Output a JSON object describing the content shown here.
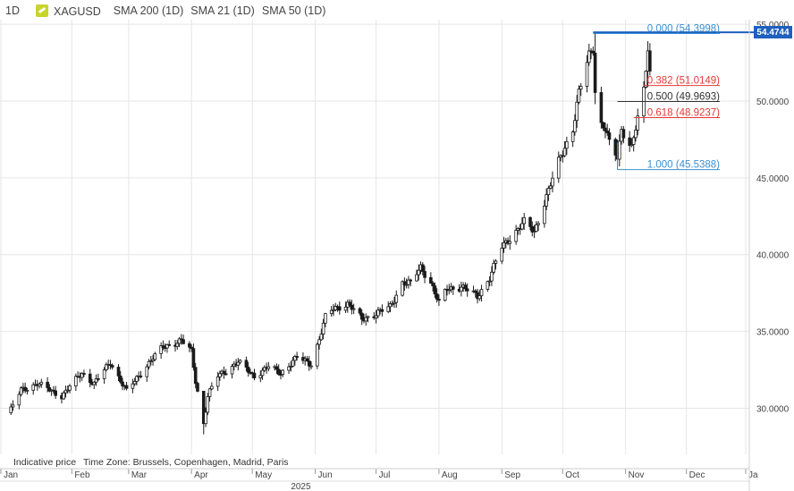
{
  "toolbar": {
    "timeframe": "1D",
    "symbol": "XAGUSD",
    "indicators": [
      "SMA 200 (1D)",
      "SMA 21 (1D)",
      "SMA 50 (1D)"
    ]
  },
  "footer": {
    "indicative": "Indicative price",
    "timezone": "Time Zone: Brussels, Copenhagen, Madrid, Paris",
    "year": "2025"
  },
  "colors": {
    "candle": "#1a1a1a",
    "price_line": "#1f5fbf",
    "fib_zero": "#3a8fd1",
    "fib_382": "#e53935",
    "fib_500": "#333333",
    "fib_618": "#e53935",
    "fib_100": "#3a8fd1",
    "grid": "#e6e6e6"
  },
  "chart_data": {
    "type": "candlestick",
    "symbol": "XAGUSD",
    "timeframe": "1D",
    "y_range": [
      27.0,
      55.3
    ],
    "y_ticks": [
      "55.0000",
      "50.0000",
      "45.0000",
      "40.0000",
      "35.0000",
      "30.0000"
    ],
    "y_tick_values": [
      55,
      50,
      45,
      40,
      35,
      30
    ],
    "x_labels": [
      "Jan",
      "Feb",
      "Mar",
      "Apr",
      "May",
      "Jun",
      "Jul",
      "Aug",
      "Sep",
      "Oct",
      "Nov",
      "Dec",
      "Ja"
    ],
    "current_price": "54.4744",
    "current_price_value": 54.4744,
    "fibonacci": [
      {
        "label": "0.000 (54.3998)",
        "level": 0.0,
        "price": 54.3998,
        "color": "#3a8fd1"
      },
      {
        "label": "0.382 (51.0149)",
        "level": 0.382,
        "price": 51.0149,
        "color": "#e53935"
      },
      {
        "label": "0.500 (49.9693)",
        "level": 0.5,
        "price": 49.9693,
        "color": "#333333"
      },
      {
        "label": "0.618 (48.9237)",
        "level": 0.618,
        "price": 48.9237,
        "color": "#e53935"
      },
      {
        "label": "1.000 (45.5388)",
        "level": 1.0,
        "price": 45.5388,
        "color": "#3a8fd1"
      }
    ],
    "close_anchors": [
      [
        "2025-01-02",
        29.9
      ],
      [
        "2025-01-07",
        31.2
      ],
      [
        "2025-01-15",
        31.6
      ],
      [
        "2025-01-27",
        30.8
      ],
      [
        "2025-02-06",
        32.3
      ],
      [
        "2025-02-12",
        31.6
      ],
      [
        "2025-02-20",
        33.0
      ],
      [
        "2025-02-28",
        31.1
      ],
      [
        "2025-03-10",
        32.8
      ],
      [
        "2025-03-18",
        34.0
      ],
      [
        "2025-03-27",
        34.4
      ],
      [
        "2025-04-01",
        33.7
      ],
      [
        "2025-04-03",
        31.8
      ],
      [
        "2025-04-07",
        29.0
      ],
      [
        "2025-04-09",
        30.8
      ],
      [
        "2025-04-14",
        32.1
      ],
      [
        "2025-04-24",
        33.0
      ],
      [
        "2025-05-02",
        32.1
      ],
      [
        "2025-05-09",
        32.7
      ],
      [
        "2025-05-15",
        32.3
      ],
      [
        "2025-05-23",
        33.3
      ],
      [
        "2025-05-30",
        32.9
      ],
      [
        "2025-06-03",
        34.5
      ],
      [
        "2025-06-06",
        35.9
      ],
      [
        "2025-06-10",
        36.5
      ],
      [
        "2025-06-17",
        36.8
      ],
      [
        "2025-06-24",
        35.8
      ],
      [
        "2025-06-30",
        36.1
      ],
      [
        "2025-07-08",
        36.6
      ],
      [
        "2025-07-14",
        38.2
      ],
      [
        "2025-07-18",
        38.1
      ],
      [
        "2025-07-23",
        39.2
      ],
      [
        "2025-07-28",
        38.2
      ],
      [
        "2025-08-01",
        36.8
      ],
      [
        "2025-08-05",
        37.8
      ],
      [
        "2025-08-12",
        37.9
      ],
      [
        "2025-08-20",
        37.3
      ],
      [
        "2025-08-26",
        38.5
      ],
      [
        "2025-09-01",
        40.5
      ],
      [
        "2025-09-05",
        41.1
      ],
      [
        "2025-09-12",
        42.1
      ],
      [
        "2025-09-17",
        41.5
      ],
      [
        "2025-09-23",
        43.8
      ],
      [
        "2025-09-30",
        46.4
      ],
      [
        "2025-10-06",
        48.2
      ],
      [
        "2025-10-09",
        50.5
      ],
      [
        "2025-10-14",
        53.0
      ],
      [
        "2025-10-16",
        53.5
      ],
      [
        "2025-10-17",
        50.7
      ],
      [
        "2025-10-20",
        48.5
      ],
      [
        "2025-10-22",
        48.2
      ],
      [
        "2025-10-24",
        47.2
      ],
      [
        "2025-10-28",
        46.3
      ],
      [
        "2025-10-30",
        48.2
      ],
      [
        "2025-11-04",
        47.0
      ],
      [
        "2025-11-06",
        48.2
      ],
      [
        "2025-11-10",
        50.6
      ],
      [
        "2025-11-12",
        53.5
      ],
      [
        "2025-11-13",
        51.9
      ]
    ],
    "events": [
      {
        "date": "2025-04-07",
        "low": 28.3,
        "high": 30.5
      },
      {
        "date": "2025-10-17",
        "low": 49.8,
        "high": 54.4
      },
      {
        "date": "2025-10-28",
        "low": 45.54,
        "high": 47.5
      },
      {
        "date": "2025-11-12",
        "low": 50.9,
        "high": 53.9
      }
    ]
  }
}
